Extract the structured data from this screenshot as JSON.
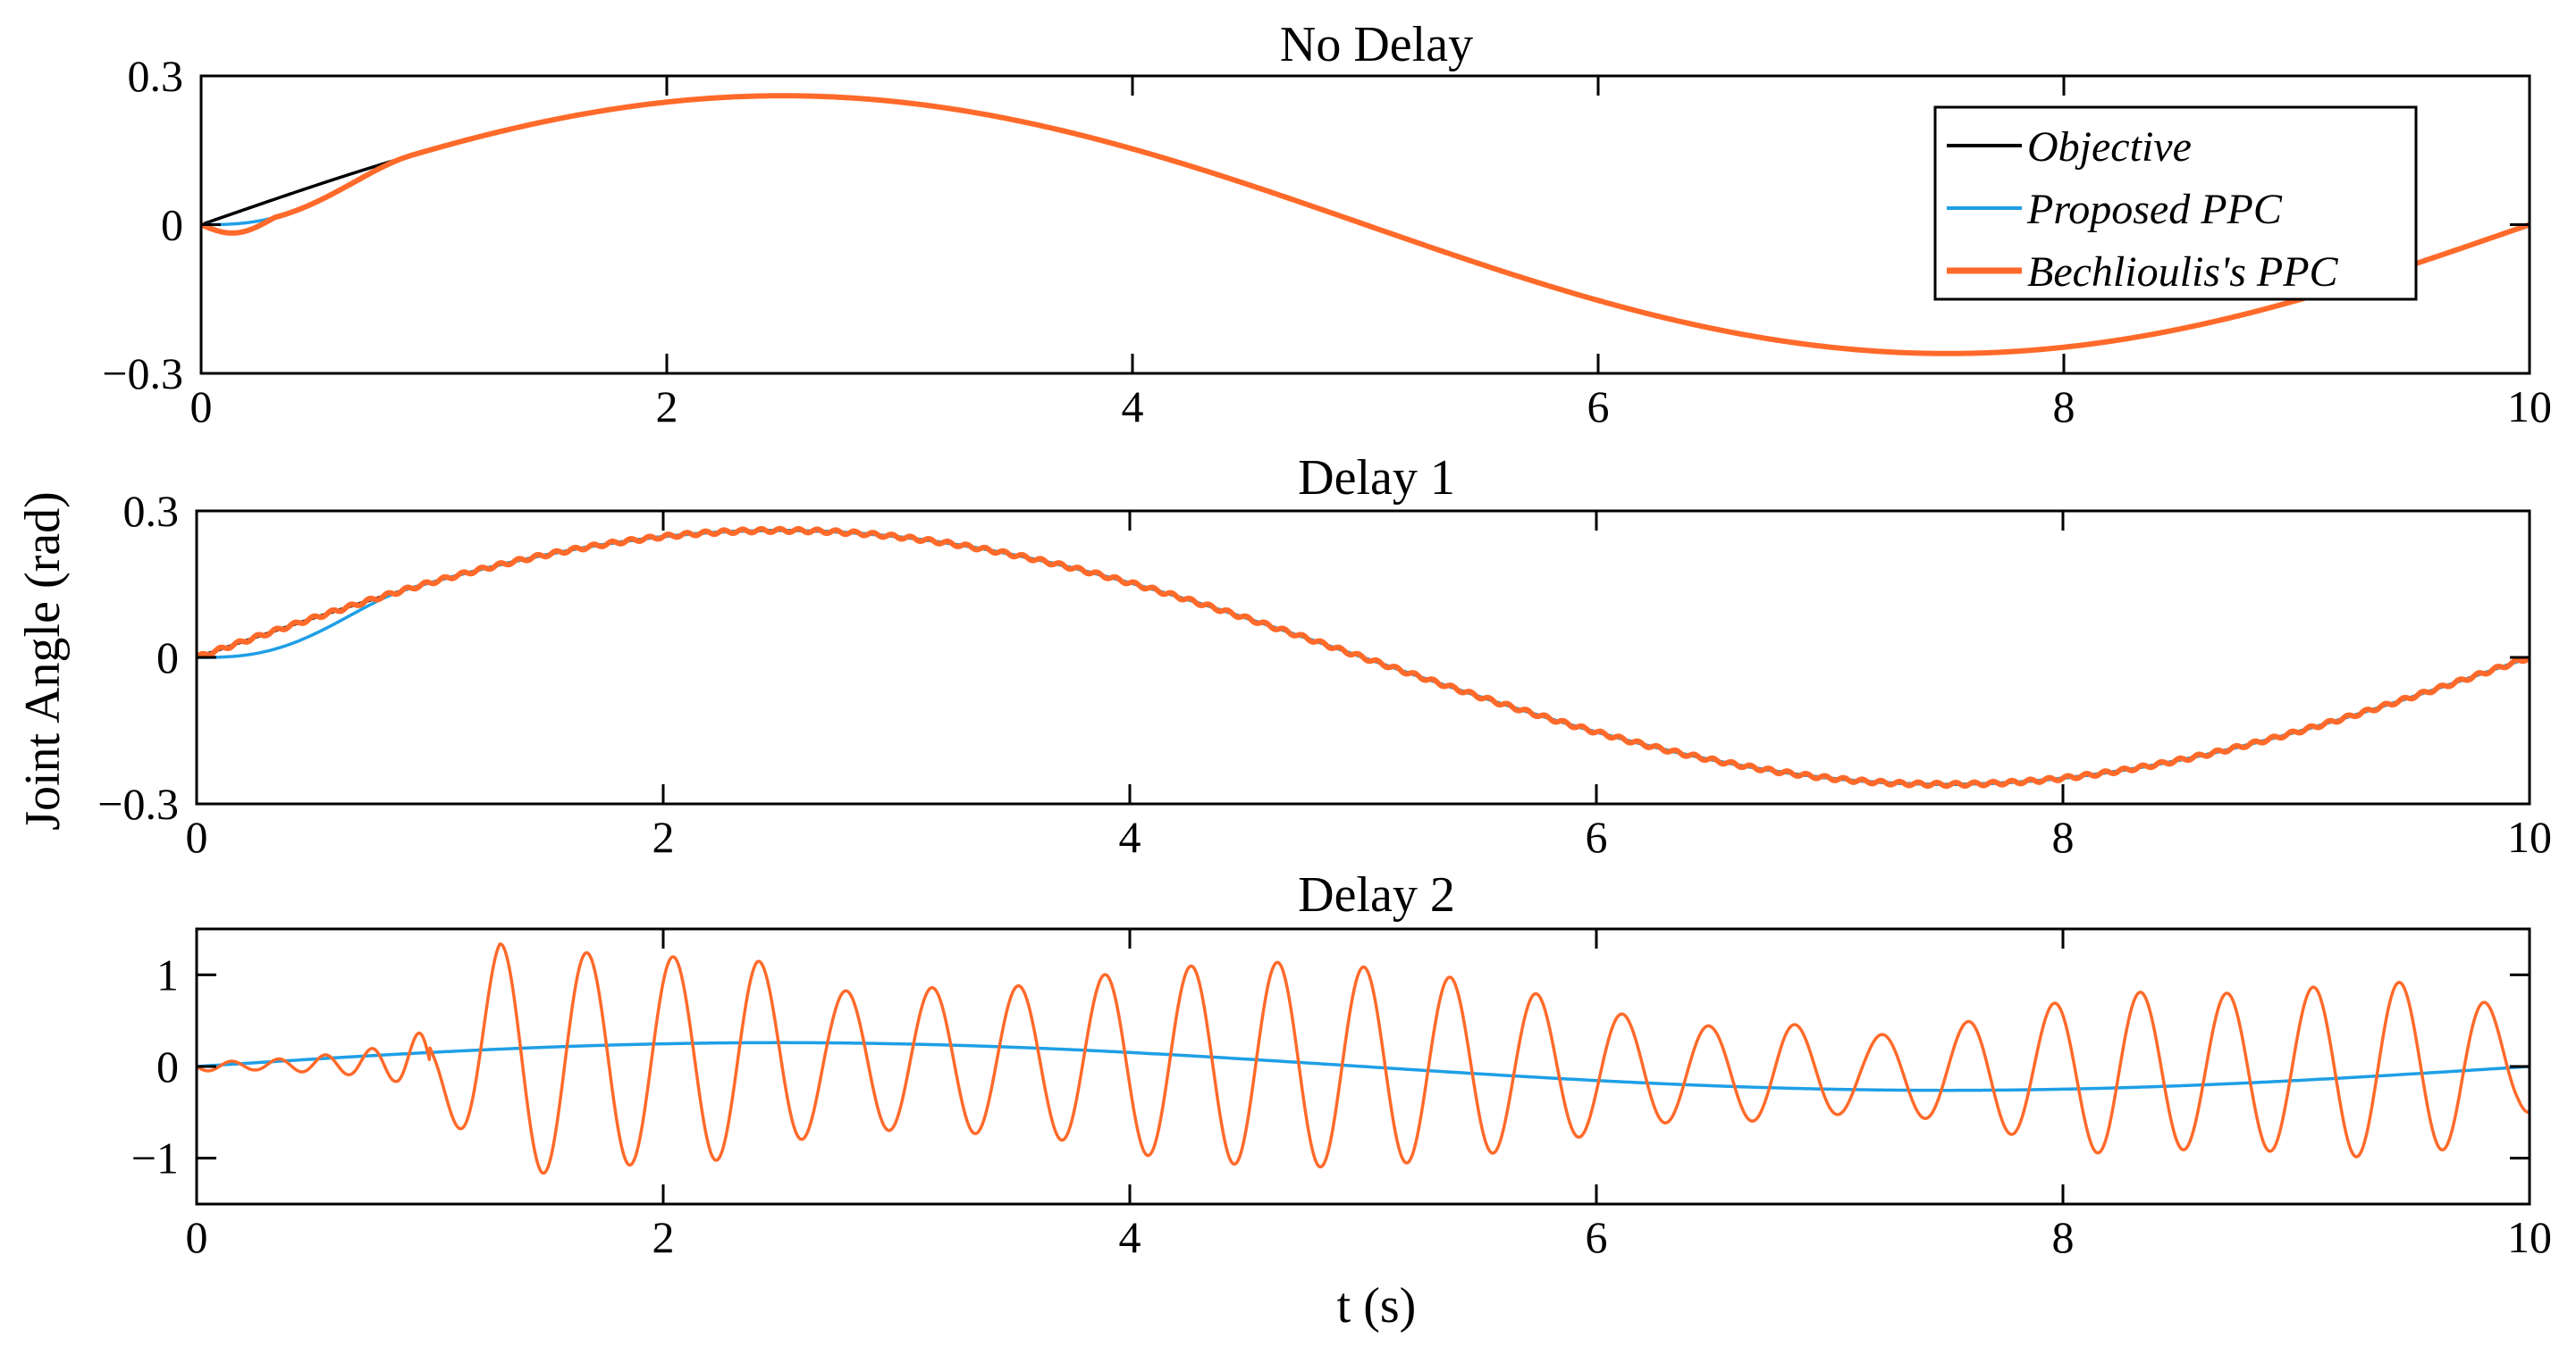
{
  "figure": {
    "ylabel": "Joint Angle (rad)",
    "xlabel": "t (s)"
  },
  "legend": {
    "entries": [
      {
        "label": "Objective",
        "color": "#000000"
      },
      {
        "label": "Proposed PPC",
        "color": "#1f9fe6"
      },
      {
        "label": "Bechlioulis's PPC",
        "color": "#ff6a2a"
      }
    ]
  },
  "colors": {
    "objective": "#000000",
    "proposed": "#1f9fe6",
    "bechlioulis": "#ff6a2a"
  },
  "chart_data": [
    {
      "type": "line",
      "title": "No Delay",
      "xlim": [
        0,
        10
      ],
      "ylim": [
        -0.3,
        0.3
      ],
      "xticks": [
        0,
        2,
        4,
        6,
        8,
        10
      ],
      "xtick_labels": [
        "0",
        "2",
        "4",
        "6",
        "8",
        "10"
      ],
      "yticks": [
        -0.3,
        0,
        0.3
      ],
      "ytick_labels": [
        "−0.3",
        "0",
        "0.3"
      ],
      "grid": false,
      "legend_position": "top-right",
      "series": [
        {
          "name": "Objective",
          "color": "#000000",
          "function": "sin",
          "amplitude": 0.26,
          "period_s": 10
        },
        {
          "name": "Proposed PPC",
          "color": "#1f9fe6",
          "function": "sin",
          "amplitude": 0.26,
          "period_s": 10,
          "transient": {
            "end_s": 0.9,
            "dip": 0.0
          }
        },
        {
          "name": "Bechlioulis's PPC",
          "color": "#ff6a2a",
          "function": "sin",
          "amplitude": 0.26,
          "period_s": 10,
          "transient": {
            "end_s": 0.9,
            "dip": -0.02
          }
        }
      ]
    },
    {
      "type": "line",
      "title": "Delay 1",
      "xlim": [
        0,
        10
      ],
      "ylim": [
        -0.3,
        0.3
      ],
      "xticks": [
        0,
        2,
        4,
        6,
        8,
        10
      ],
      "xtick_labels": [
        "0",
        "2",
        "4",
        "6",
        "8",
        "10"
      ],
      "yticks": [
        -0.3,
        0,
        0.3
      ],
      "ytick_labels": [
        "−0.3",
        "0",
        "0.3"
      ],
      "grid": false,
      "series": [
        {
          "name": "Objective",
          "color": "#000000",
          "function": "sin",
          "amplitude": 0.26,
          "period_s": 10
        },
        {
          "name": "Proposed PPC",
          "color": "#1f9fe6",
          "function": "sin",
          "amplitude": 0.26,
          "period_s": 10,
          "transient": {
            "end_s": 0.9,
            "dip": 0.0
          }
        },
        {
          "name": "Bechlioulis's PPC",
          "color": "#ff6a2a",
          "function": "sin",
          "amplitude": 0.26,
          "period_s": 10,
          "ripple_amplitude": 0.004
        }
      ]
    },
    {
      "type": "line",
      "title": "Delay 2",
      "xlim": [
        0,
        10
      ],
      "ylim": [
        -1.5,
        1.5
      ],
      "xticks": [
        0,
        2,
        4,
        6,
        8,
        10
      ],
      "xtick_labels": [
        "0",
        "2",
        "4",
        "6",
        "8",
        "10"
      ],
      "yticks": [
        -1,
        0,
        1
      ],
      "ytick_labels": [
        "−1",
        "0",
        "1"
      ],
      "grid": false,
      "series": [
        {
          "name": "Proposed PPC",
          "color": "#1f9fe6",
          "function": "sin",
          "amplitude": 0.26,
          "period_s": 10
        },
        {
          "name": "Bechlioulis's PPC",
          "color": "#ff6a2a",
          "oscillation_period_s": 0.37,
          "peaks": [
            [
              0.25,
              0.05
            ],
            [
              0.45,
              0.08
            ],
            [
              0.65,
              0.12
            ],
            [
              0.85,
              0.2
            ],
            [
              1.02,
              0.4
            ],
            [
              1.3,
              1.28
            ],
            [
              1.68,
              1.17
            ],
            [
              2.05,
              1.12
            ],
            [
              2.4,
              1.08
            ],
            [
              2.72,
              0.74
            ],
            [
              3.03,
              0.78
            ],
            [
              3.35,
              0.8
            ],
            [
              3.65,
              0.83
            ],
            [
              3.95,
              0.98
            ],
            [
              4.3,
              1.07
            ],
            [
              4.65,
              1.12
            ],
            [
              5.05,
              1.08
            ],
            [
              5.45,
              0.97
            ],
            [
              5.8,
              0.8
            ],
            [
              6.15,
              0.6
            ],
            [
              6.5,
              0.5
            ],
            [
              6.8,
              0.55
            ],
            [
              7.15,
              0.4
            ],
            [
              7.5,
              0.52
            ],
            [
              7.85,
              0.7
            ],
            [
              8.2,
              0.9
            ],
            [
              8.55,
              0.84
            ],
            [
              8.95,
              0.88
            ],
            [
              9.35,
              0.97
            ],
            [
              9.7,
              0.87
            ],
            [
              9.95,
              0.5
            ]
          ]
        }
      ]
    }
  ]
}
